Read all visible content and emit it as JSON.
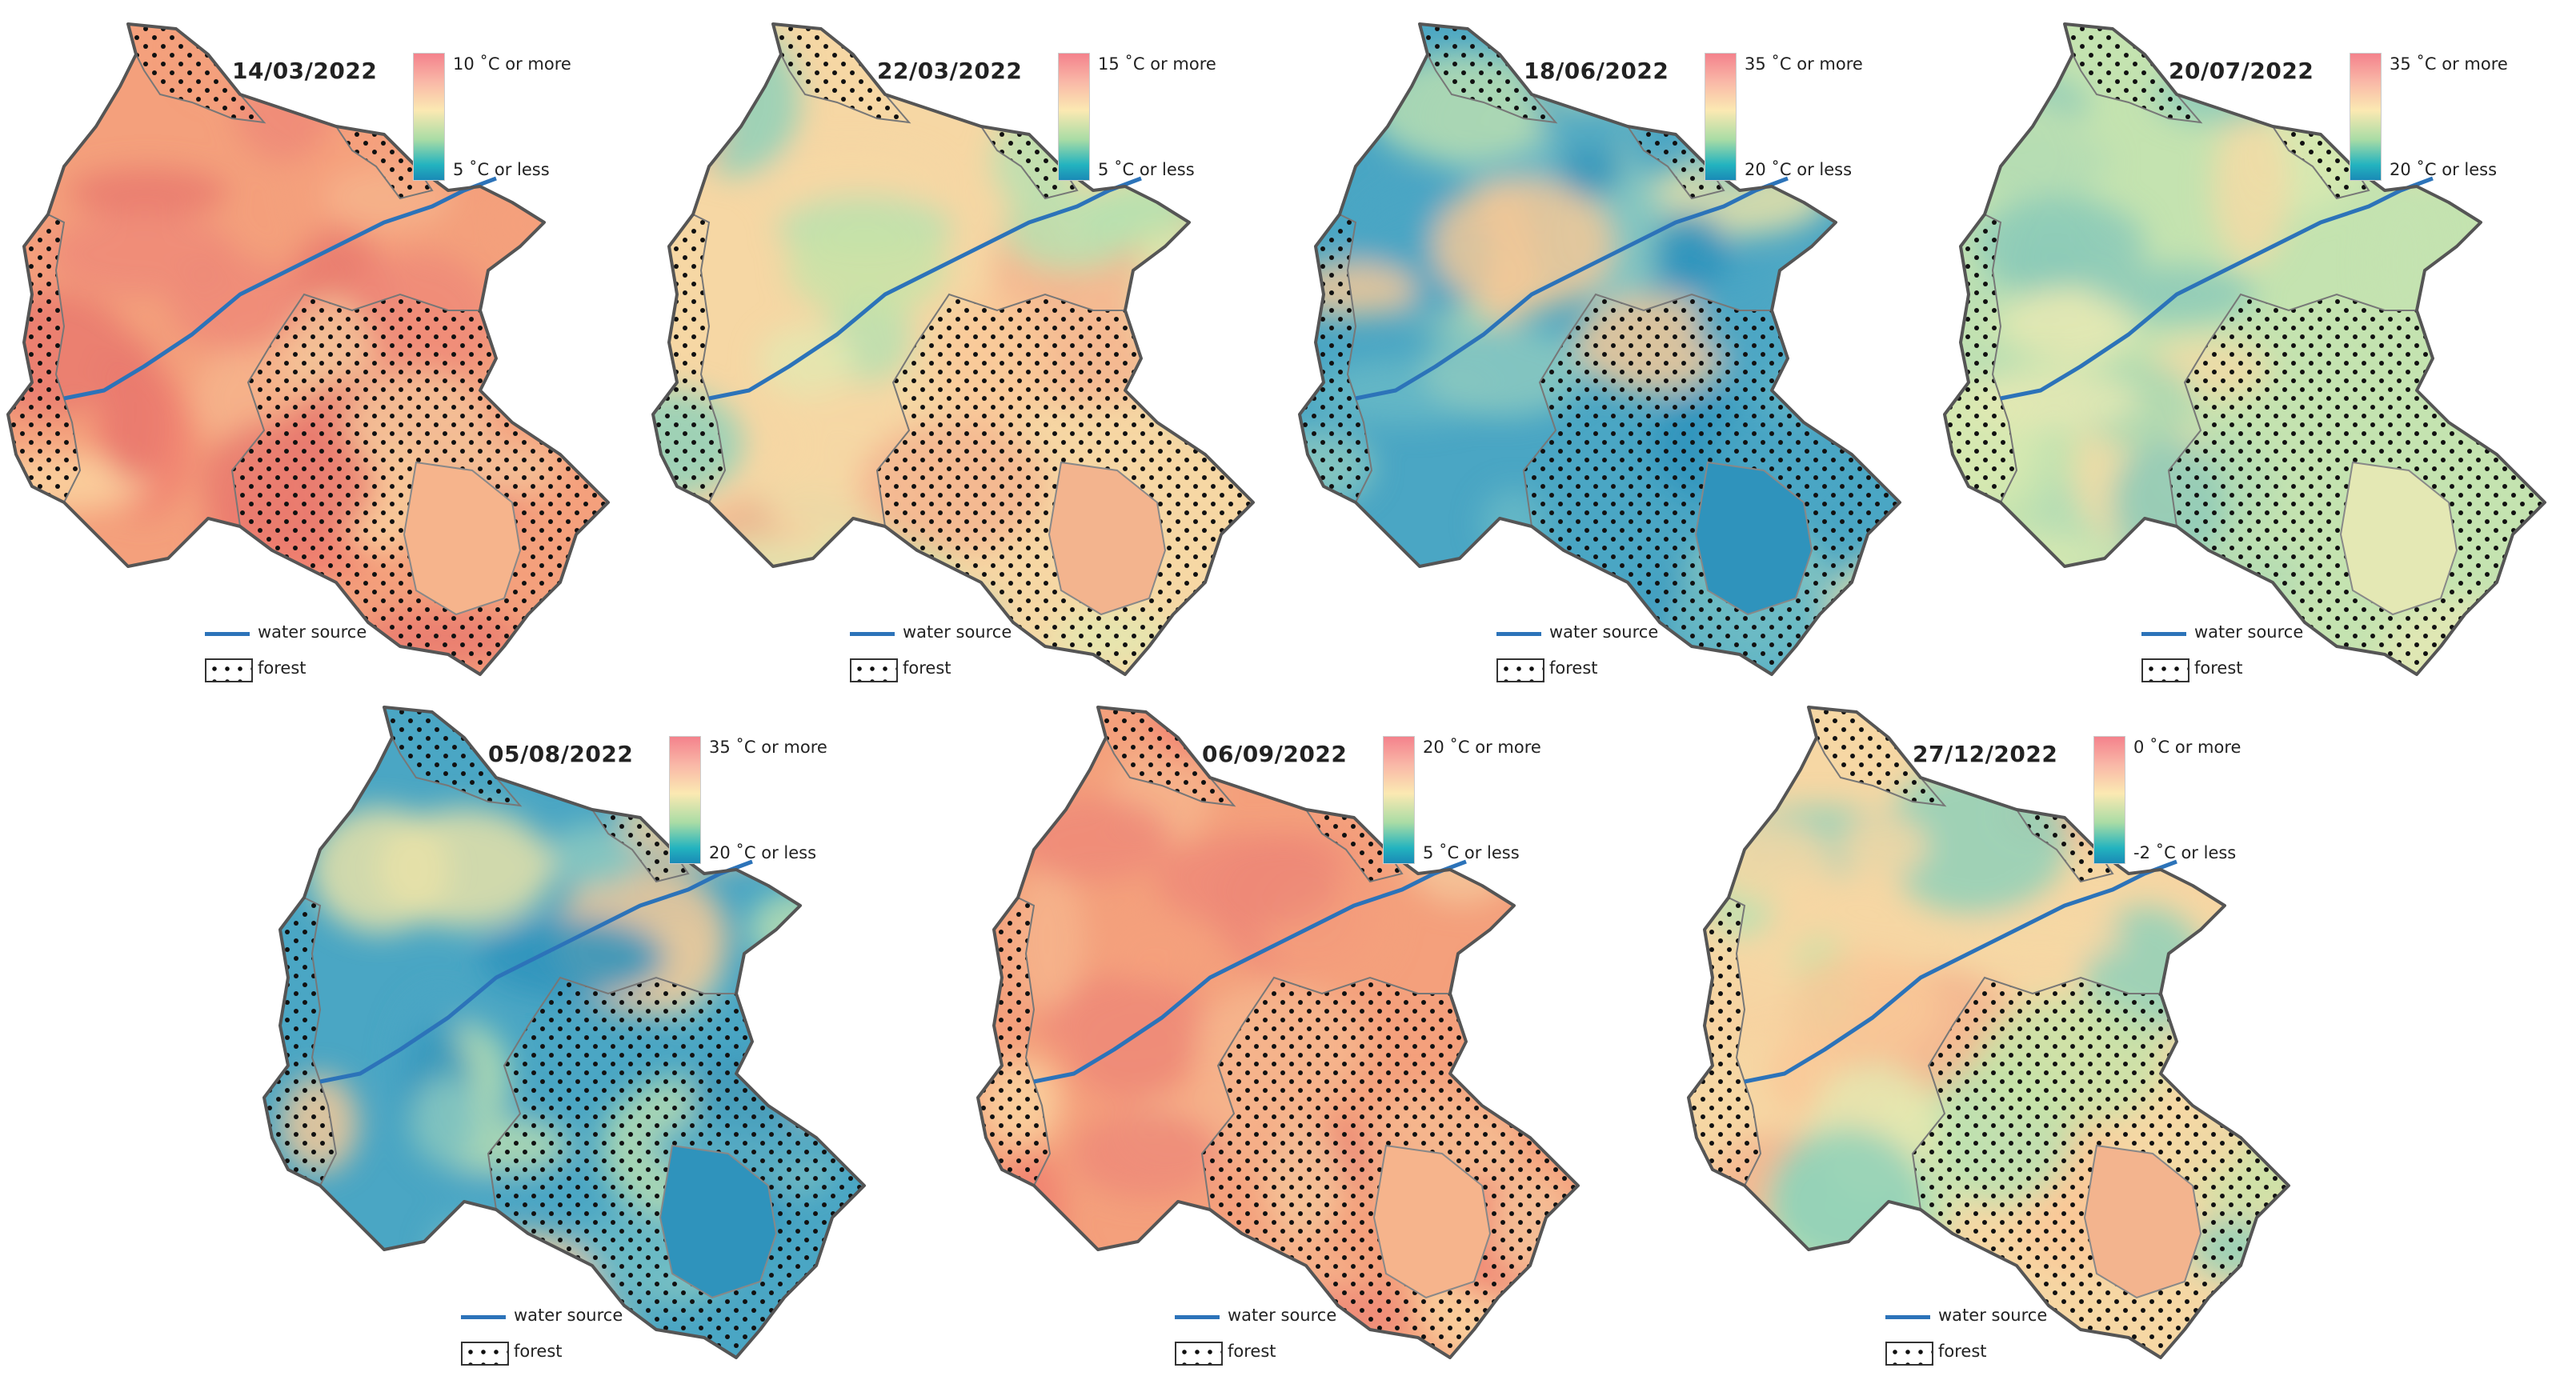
{
  "panels": [
    {
      "date": "14/03/2022",
      "scale_max": "10 ˚C or more",
      "scale_min": "5 ˚C or less",
      "tone": "warm"
    },
    {
      "date": "22/03/2022",
      "scale_max": "15 ˚C or more",
      "scale_min": "5 ˚C or less",
      "tone": "mixed"
    },
    {
      "date": "18/06/2022",
      "scale_max": "35 ˚C or more",
      "scale_min": "20 ˚C or less",
      "tone": "cool"
    },
    {
      "date": "20/07/2022",
      "scale_max": "35 ˚C or more",
      "scale_min": "20 ˚C or less",
      "tone": "green"
    },
    {
      "date": "05/08/2022",
      "scale_max": "35 ˚C or more",
      "scale_min": "20 ˚C or less",
      "tone": "cool"
    },
    {
      "date": "06/09/2022",
      "scale_max": "20 ˚C or more",
      "scale_min": "5 ˚C or less",
      "tone": "warm"
    },
    {
      "date": "27/12/2022",
      "scale_max": "0 ˚C or more",
      "scale_min": "-2 ˚C or less",
      "tone": "mixed"
    }
  ],
  "legend": {
    "water": "water source",
    "forest": "forest"
  },
  "colors": {
    "water": "#2c73b9",
    "border": "#555555",
    "hot": "#f08070",
    "cold": "#1f8bb8"
  }
}
